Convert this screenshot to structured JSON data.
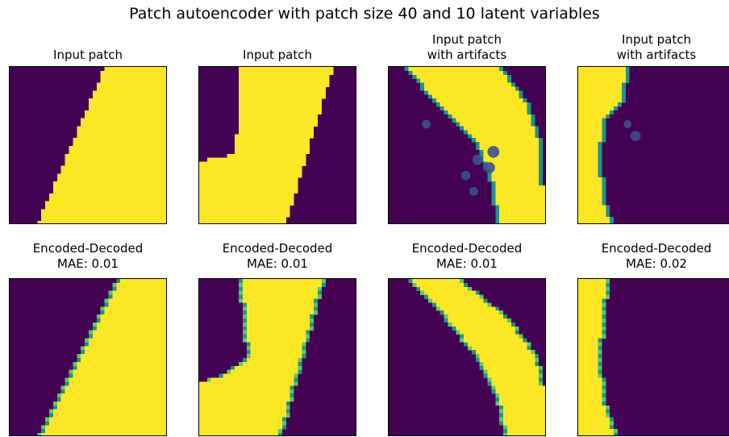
{
  "figure": {
    "title": "Patch autoencoder with patch size 40 and 10 latent variables"
  },
  "colors": {
    "background": "#440154",
    "foreground": "#FDE725",
    "edge_teal": "#21918C",
    "edge_green": "#5EC962",
    "artifact_purple": "#3B528B"
  },
  "chart_data": {
    "type": "heatmap",
    "colormap": "viridis",
    "grid": false,
    "axes_visible": false,
    "panels": [
      {
        "row": 0,
        "col": 0,
        "line1": "Input patch",
        "line2": "",
        "kind": "input",
        "region": {
          "left_edge": [
            [
              0,
              24
            ],
            [
              40,
              7
            ]
          ],
          "right_edge": [
            [
              0,
              40
            ],
            [
              40,
              40
            ]
          ]
        }
      },
      {
        "row": 0,
        "col": 1,
        "line1": "Input patch",
        "line2": "",
        "kind": "input",
        "region": {
          "left_edge": [
            [
              0,
              10
            ],
            [
              12,
              10
            ],
            [
              22,
              9
            ],
            [
              24,
              0
            ],
            [
              40,
              0
            ]
          ],
          "right_edge": [
            [
              0,
              34
            ],
            [
              40,
              22
            ]
          ]
        }
      },
      {
        "row": 0,
        "col": 2,
        "line1": "Input patch",
        "line2": "with artifacts",
        "kind": "artifacts",
        "region": {
          "left_edge": [
            [
              0,
              4
            ],
            [
              10,
              12
            ],
            [
              20,
              22
            ],
            [
              30,
              26
            ],
            [
              40,
              27
            ]
          ],
          "right_edge": [
            [
              0,
              29
            ],
            [
              10,
              36
            ],
            [
              20,
              39
            ],
            [
              40,
              40
            ]
          ]
        },
        "blobs": [
          [
            23,
            22,
            1.3
          ],
          [
            21,
            26,
            1.5
          ],
          [
            25,
            25,
            1.4
          ],
          [
            27,
            19,
            1.2
          ],
          [
            31,
            21,
            1.1
          ],
          [
            14,
            9,
            1.1
          ]
        ]
      },
      {
        "row": 0,
        "col": 3,
        "line1": "Input patch",
        "line2": "with artifacts",
        "kind": "artifacts",
        "region": {
          "left_edge": [
            [
              0,
              0
            ],
            [
              40,
              0
            ]
          ],
          "right_edge": [
            [
              0,
              13
            ],
            [
              8,
              12
            ],
            [
              14,
              7
            ],
            [
              24,
              6
            ],
            [
              33,
              7
            ],
            [
              40,
              9
            ]
          ]
        },
        "blobs": [
          [
            14,
            12,
            1.0
          ],
          [
            17,
            14,
            1.3
          ]
        ]
      },
      {
        "row": 1,
        "col": 0,
        "line1": "Encoded-Decoded",
        "line2": "MAE: 0.01",
        "kind": "decoded",
        "region": {
          "left_edge": [
            [
              0,
              27
            ],
            [
              40,
              7
            ]
          ],
          "right_edge": [
            [
              0,
              40
            ],
            [
              40,
              40
            ]
          ]
        }
      },
      {
        "row": 1,
        "col": 1,
        "line1": "Encoded-Decoded",
        "line2": "MAE: 0.01",
        "kind": "decoded",
        "region": {
          "left_edge": [
            [
              0,
              10
            ],
            [
              12,
              11
            ],
            [
              20,
              12
            ],
            [
              24,
              6
            ],
            [
              26,
              0
            ],
            [
              40,
              0
            ]
          ],
          "right_edge": [
            [
              0,
              32
            ],
            [
              40,
              21
            ]
          ]
        }
      },
      {
        "row": 1,
        "col": 2,
        "line1": "Encoded-Decoded",
        "line2": "MAE: 0.01",
        "kind": "decoded",
        "region": {
          "left_edge": [
            [
              0,
              4
            ],
            [
              10,
              14
            ],
            [
              20,
              22
            ],
            [
              30,
              27
            ],
            [
              40,
              29
            ]
          ],
          "right_edge": [
            [
              0,
              18
            ],
            [
              10,
              31
            ],
            [
              20,
              38
            ],
            [
              30,
              40
            ],
            [
              40,
              40
            ]
          ]
        }
      },
      {
        "row": 1,
        "col": 3,
        "line1": "Encoded-Decoded",
        "line2": "MAE: 0.02",
        "kind": "decoded",
        "region": {
          "left_edge": [
            [
              0,
              0
            ],
            [
              40,
              0
            ]
          ],
          "right_edge": [
            [
              0,
              8
            ],
            [
              10,
              7
            ],
            [
              20,
              6
            ],
            [
              30,
              7
            ],
            [
              40,
              10
            ]
          ]
        }
      }
    ]
  }
}
